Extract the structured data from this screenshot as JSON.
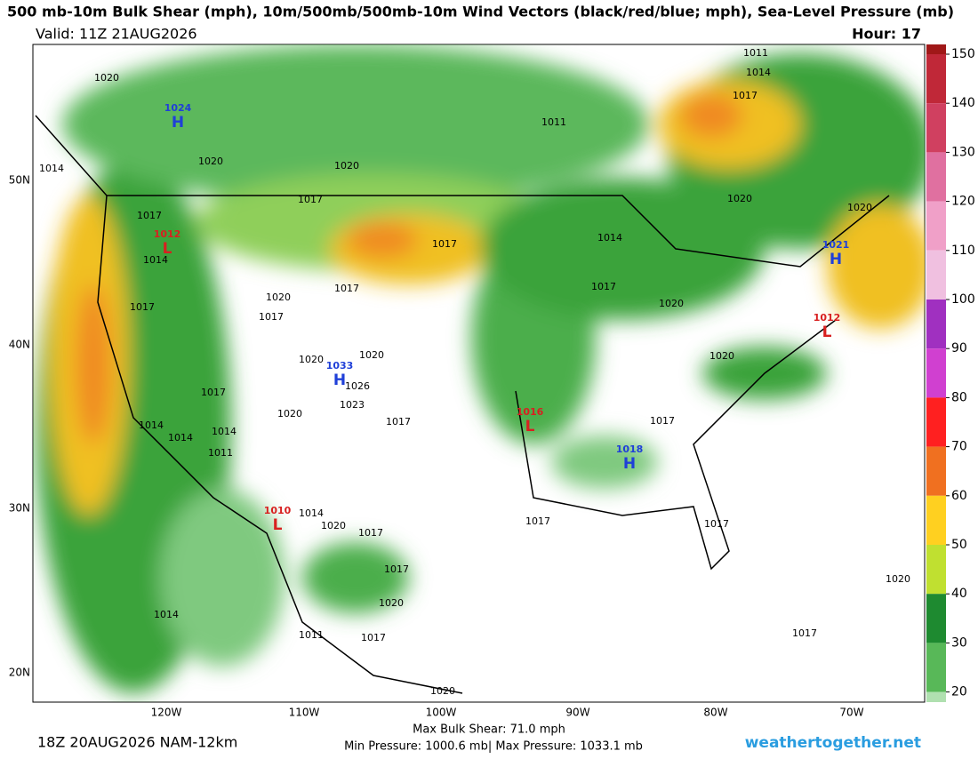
{
  "header": {
    "title": "500 mb-10m Bulk Shear (mph), 10m/500mb/500mb-10m Wind Vectors (black/red/blue; mph), Sea-Level Pressure (mb)",
    "valid": "Valid: 11Z 21AUG2026",
    "hour": "Hour: 17"
  },
  "colorbar": {
    "ticks": [
      150,
      140,
      130,
      120,
      110,
      100,
      90,
      80,
      70,
      60,
      50,
      40,
      30,
      20
    ]
  },
  "latitudes": [
    "50N",
    "40N",
    "30N",
    "20N"
  ],
  "longitudes": [
    "120W",
    "110W",
    "100W",
    "90W",
    "80W",
    "70W"
  ],
  "centers": [
    {
      "type": "H",
      "value": 1024
    },
    {
      "type": "L",
      "value": 1012
    },
    {
      "type": "H",
      "value": 1033
    },
    {
      "type": "L",
      "value": 1016
    },
    {
      "type": "H",
      "value": 1018
    },
    {
      "type": "H",
      "value": 1021
    },
    {
      "type": "L",
      "value": 1012
    },
    {
      "type": "L",
      "value": 1010
    }
  ],
  "isobar_labels": [
    1020,
    1011,
    1014,
    1017,
    1011,
    1020,
    1020,
    1014,
    1017,
    1017,
    1017,
    1020,
    1020,
    1014,
    1017,
    1020,
    1017,
    1017,
    1014,
    1017,
    1020,
    1020,
    1020,
    1026,
    1023,
    1017,
    1020,
    1017,
    1014,
    1014,
    1014,
    1011,
    1020,
    1017,
    1014,
    1020,
    1017,
    1017,
    1020,
    1017,
    1017,
    1014,
    1011,
    1017,
    1020,
    1017,
    1020
  ],
  "footer": {
    "run": "18Z 20AUG2026 NAM-12km",
    "max_shear": "Max Bulk Shear:  71.0 mph",
    "pressure": "Min Pressure: 1000.6 mb| Max Pressure: 1033.1 mb",
    "site": "weathertogether.net"
  }
}
